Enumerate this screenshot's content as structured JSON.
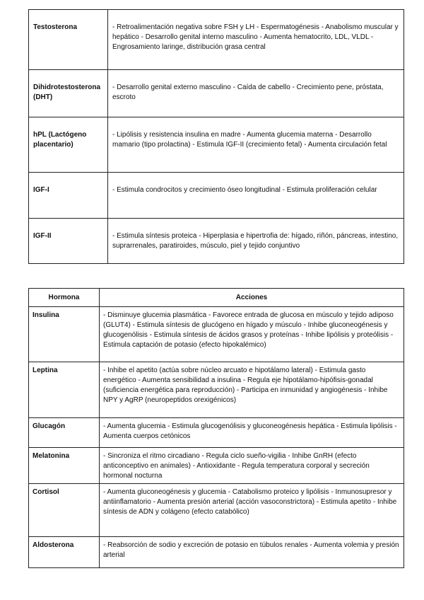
{
  "table1": {
    "rows": [
      {
        "hormone": "Testosterona",
        "actions": "- Retroalimentación negativa sobre FSH y LH - Espermatogénesis - Anabolismo muscular y hepático - Desarrollo genital interno masculino - Aumenta hematocrito, LDL, VLDL - Engrosamiento laringe, distribución grasa central"
      },
      {
        "hormone": "Dihidrotestosterona (DHT)",
        "actions": "- Desarrollo genital externo masculino - Caída de cabello - Crecimiento pene, próstata, escroto"
      },
      {
        "hormone": "hPL (Lactógeno placentario)",
        "actions": "- Lipólisis y resistencia insulina en madre - Aumenta glucemia materna - Desarrollo mamario (tipo prolactina) - Estimula IGF-II (crecimiento fetal) - Aumenta circulación fetal"
      },
      {
        "hormone": "IGF-I",
        "actions": "- Estimula condrocitos y crecimiento óseo longitudinal - Estimula proliferación celular"
      },
      {
        "hormone": "IGF-II",
        "actions": "- Estimula síntesis proteica - Hiperplasia e hipertrofia de: hígado, riñón, páncreas, intestino, suprarrenales, paratiroides, músculo, piel y tejido conjuntivo"
      }
    ]
  },
  "table2": {
    "headers": [
      "Hormona",
      "Acciones"
    ],
    "rows": [
      {
        "hormone": "Insulina",
        "actions": "- Disminuye glucemia plasmática - Favorece entrada de glucosa en músculo y tejido adiposo (GLUT4) - Estimula síntesis de glucógeno en hígado y músculo - Inhibe gluconeogénesis y glucogenólisis - Estimula síntesis de ácidos grasos y proteínas - Inhibe lipólisis y proteólisis - Estimula captación de potasio (efecto hipokalémico)"
      },
      {
        "hormone": "Leptina",
        "actions": "- Inhibe el apetito (actúa sobre núcleo arcuato e hipotálamo lateral) - Estimula gasto energético - Aumenta sensibilidad a insulina - Regula eje hipotálamo-hipófisis-gonadal (suficiencia energética para reproducción) - Participa en inmunidad y angiogénesis - Inhibe NPY y AgRP (neuropeptidos orexigénicos)"
      },
      {
        "hormone": "Glucagón",
        "actions": "- Aumenta glucemia - Estimula glucogenólisis y gluconeogénesis hepática - Estimula lipólisis - Aumenta cuerpos cetónicos"
      },
      {
        "hormone": "Melatonina",
        "actions": "- Sincroniza el ritmo circadiano - Regula ciclo sueño-vigilia - Inhibe GnRH (efecto anticonceptivo en animales) - Antioxidante - Regula temperatura corporal y secreción hormonal nocturna"
      },
      {
        "hormone": "Cortisol",
        "actions": "- Aumenta gluconeogénesis y glucemia - Catabolismo proteico y lipólisis - Inmunosupresor y antiinflamatorio - Aumenta presión arterial (acción vasoconstrictora) - Estimula apetito - Inhibe síntesis de ADN y colágeno (efecto catabólico)"
      },
      {
        "hormone": "Aldosterona",
        "actions": "- Reabsorción de sodio y excreción de potasio en túbulos renales - Aumenta volemia y presión arterial"
      }
    ]
  }
}
